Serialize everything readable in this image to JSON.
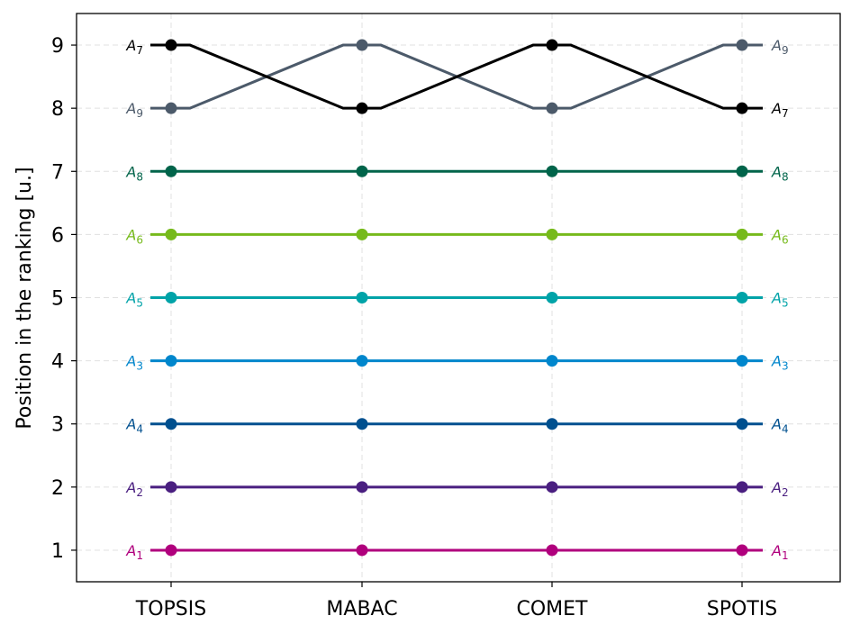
{
  "chart_data": {
    "type": "line",
    "ylabel": "Position in the ranking [u.]",
    "xlabel": "",
    "categories": [
      "TOPSIS",
      "MABAC",
      "COMET",
      "SPOTIS"
    ],
    "yticks": [
      "1",
      "2",
      "3",
      "4",
      "5",
      "6",
      "7",
      "8",
      "9"
    ],
    "ylim": [
      0.5,
      9.5
    ],
    "grid": true,
    "series": [
      {
        "name": "A",
        "sub": "1",
        "color": "#b0007d",
        "values": [
          1,
          1,
          1,
          1
        ]
      },
      {
        "name": "A",
        "sub": "2",
        "color": "#4a1f80",
        "values": [
          2,
          2,
          2,
          2
        ]
      },
      {
        "name": "A",
        "sub": "4",
        "color": "#00508f",
        "values": [
          3,
          3,
          3,
          3
        ]
      },
      {
        "name": "A",
        "sub": "3",
        "color": "#0086cc",
        "values": [
          4,
          4,
          4,
          4
        ]
      },
      {
        "name": "A",
        "sub": "5",
        "color": "#00a3a8",
        "values": [
          5,
          5,
          5,
          5
        ]
      },
      {
        "name": "A",
        "sub": "6",
        "color": "#76ba1b",
        "values": [
          6,
          6,
          6,
          6
        ]
      },
      {
        "name": "A",
        "sub": "8",
        "color": "#00644a",
        "values": [
          7,
          7,
          7,
          7
        ]
      },
      {
        "name": "A",
        "sub": "9",
        "color": "#4c5a6a",
        "values": [
          8,
          9,
          8,
          9
        ]
      },
      {
        "name": "A",
        "sub": "7",
        "color": "#000000",
        "values": [
          9,
          8,
          9,
          8
        ]
      }
    ]
  }
}
